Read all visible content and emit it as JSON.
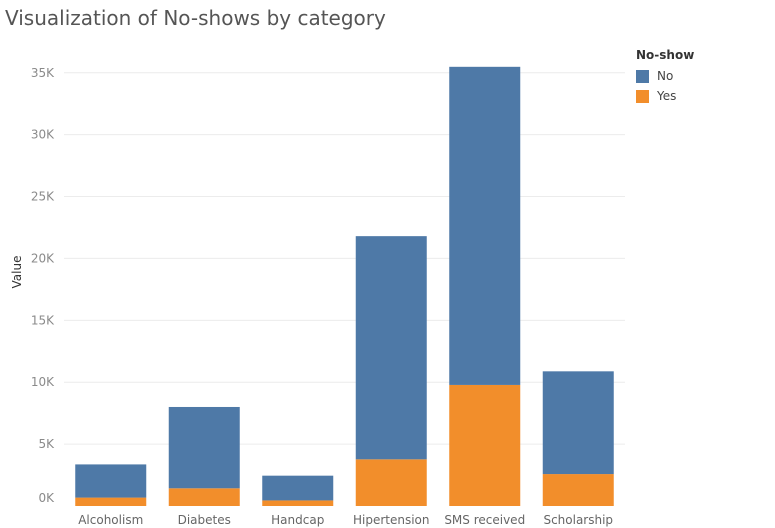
{
  "chart_data": {
    "type": "bar",
    "stacked": true,
    "title": "Visualization of No-shows by category",
    "xlabel": "",
    "ylabel": "Value",
    "ylim": [
      0,
      37000
    ],
    "yticks": [
      {
        "value": 0,
        "label": "0K"
      },
      {
        "value": 5000,
        "label": "5K"
      },
      {
        "value": 10000,
        "label": "10K"
      },
      {
        "value": 15000,
        "label": "15K"
      },
      {
        "value": 20000,
        "label": "20K"
      },
      {
        "value": 25000,
        "label": "25K"
      },
      {
        "value": 30000,
        "label": "30K"
      },
      {
        "value": 35000,
        "label": "35K"
      }
    ],
    "categories": [
      "Alcoholism",
      "Diabetes",
      "Handcap",
      "Hipertension",
      "SMS received",
      "Scholarship"
    ],
    "legend_title": "No-show",
    "legend_position": "top-right",
    "grid": true,
    "series": [
      {
        "name": "Yes",
        "color": "#f28e2b",
        "values": [
          680,
          1430,
          450,
          3770,
          9780,
          2580
        ]
      },
      {
        "name": "No",
        "color": "#4e79a7",
        "values": [
          2680,
          6570,
          2000,
          18030,
          25700,
          8300
        ]
      }
    ]
  }
}
